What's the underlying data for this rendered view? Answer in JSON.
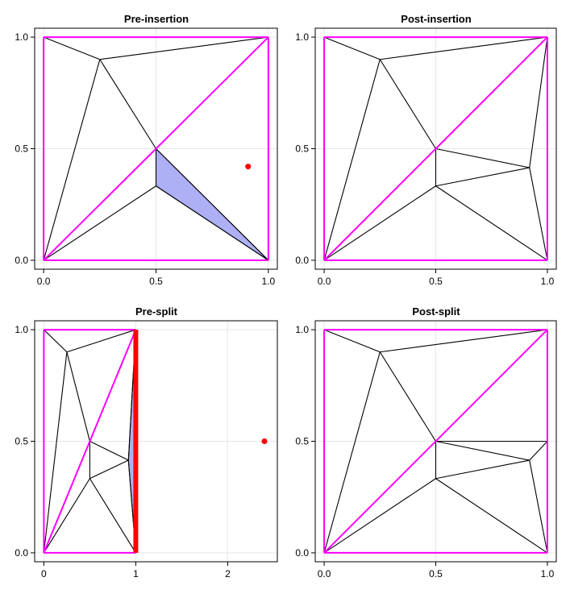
{
  "chart_data": [
    {
      "type": "triangulation",
      "title": "Pre-insertion",
      "xlim": [
        -0.04,
        1.04
      ],
      "ylim": [
        -0.04,
        1.04
      ],
      "xticks": [
        0,
        0.5,
        1
      ],
      "xtick_labels": [
        "0.0",
        "0.5",
        "1.0"
      ],
      "yticks": [
        0,
        0.5,
        1
      ],
      "ytick_labels": [
        "0.0",
        "0.5",
        "1.0"
      ],
      "grid": true,
      "edges": [
        [
          [
            0,
            0
          ],
          [
            1,
            0
          ]
        ],
        [
          [
            1,
            0
          ],
          [
            1,
            1
          ]
        ],
        [
          [
            1,
            1
          ],
          [
            0,
            1
          ]
        ],
        [
          [
            0,
            1
          ],
          [
            0,
            0
          ]
        ],
        [
          [
            0,
            0
          ],
          [
            1,
            1
          ]
        ],
        [
          [
            0,
            1
          ],
          [
            0.25,
            0.9
          ]
        ],
        [
          [
            0.25,
            0.9
          ],
          [
            1,
            1
          ]
        ],
        [
          [
            0,
            0
          ],
          [
            0.25,
            0.9
          ]
        ],
        [
          [
            0.25,
            0.9
          ],
          [
            0.5,
            0.5
          ]
        ],
        [
          [
            0.5,
            0.5
          ],
          [
            0.5,
            0.333
          ]
        ],
        [
          [
            0.5,
            0.333
          ],
          [
            0,
            0
          ]
        ],
        [
          [
            0.5,
            0.333
          ],
          [
            1,
            0
          ]
        ],
        [
          [
            0.5,
            0.5
          ],
          [
            1,
            0
          ]
        ]
      ],
      "constrained_edges": [
        [
          [
            0,
            0
          ],
          [
            1,
            0
          ]
        ],
        [
          [
            1,
            0
          ],
          [
            1,
            1
          ]
        ],
        [
          [
            1,
            1
          ],
          [
            0,
            1
          ]
        ],
        [
          [
            0,
            1
          ],
          [
            0,
            0
          ]
        ],
        [
          [
            0,
            0
          ],
          [
            1,
            1
          ]
        ]
      ],
      "highlighted_triangles": [
        [
          [
            0.5,
            0.5
          ],
          [
            0.5,
            0.333
          ],
          [
            1,
            0
          ]
        ]
      ],
      "points": [
        [
          0.91,
          0.42
        ]
      ],
      "thick_edges": [],
      "colors": {
        "edge": "#000000",
        "constrained": "#ff00ff",
        "fill": "#aeb0f5",
        "point": "#ff0000"
      }
    },
    {
      "type": "triangulation",
      "title": "Post-insertion",
      "xlim": [
        -0.04,
        1.04
      ],
      "ylim": [
        -0.04,
        1.04
      ],
      "xticks": [
        0,
        0.5,
        1
      ],
      "xtick_labels": [
        "0.0",
        "0.5",
        "1.0"
      ],
      "yticks": [
        0,
        0.5,
        1
      ],
      "ytick_labels": [
        "0.0",
        "0.5",
        "1.0"
      ],
      "grid": true,
      "edges": [
        [
          [
            0,
            0
          ],
          [
            1,
            0
          ]
        ],
        [
          [
            1,
            0
          ],
          [
            1,
            1
          ]
        ],
        [
          [
            1,
            1
          ],
          [
            0,
            1
          ]
        ],
        [
          [
            0,
            1
          ],
          [
            0,
            0
          ]
        ],
        [
          [
            0,
            0
          ],
          [
            1,
            1
          ]
        ],
        [
          [
            0,
            1
          ],
          [
            0.25,
            0.9
          ]
        ],
        [
          [
            0.25,
            0.9
          ],
          [
            1,
            1
          ]
        ],
        [
          [
            0,
            0
          ],
          [
            0.25,
            0.9
          ]
        ],
        [
          [
            0.25,
            0.9
          ],
          [
            0.5,
            0.5
          ]
        ],
        [
          [
            0.5,
            0.5
          ],
          [
            0.5,
            0.333
          ]
        ],
        [
          [
            0.5,
            0.333
          ],
          [
            0,
            0
          ]
        ],
        [
          [
            0.5,
            0.333
          ],
          [
            1,
            0
          ]
        ],
        [
          [
            0.5,
            0.5
          ],
          [
            0.92,
            0.415
          ]
        ],
        [
          [
            0.5,
            0.333
          ],
          [
            0.92,
            0.415
          ]
        ],
        [
          [
            0.92,
            0.415
          ],
          [
            1,
            0
          ]
        ],
        [
          [
            0.92,
            0.415
          ],
          [
            1,
            1
          ]
        ]
      ],
      "constrained_edges": [
        [
          [
            0,
            0
          ],
          [
            1,
            0
          ]
        ],
        [
          [
            1,
            0
          ],
          [
            1,
            1
          ]
        ],
        [
          [
            1,
            1
          ],
          [
            0,
            1
          ]
        ],
        [
          [
            0,
            1
          ],
          [
            0,
            0
          ]
        ],
        [
          [
            0,
            0
          ],
          [
            1,
            1
          ]
        ]
      ],
      "highlighted_triangles": [],
      "points": [],
      "thick_edges": [],
      "colors": {
        "edge": "#000000",
        "constrained": "#ff00ff",
        "fill": "#aeb0f5",
        "point": "#ff0000"
      }
    },
    {
      "type": "triangulation",
      "title": "Pre-split",
      "xlim": [
        -0.1,
        2.54
      ],
      "ylim": [
        -0.04,
        1.04
      ],
      "xticks": [
        0,
        1,
        2
      ],
      "xtick_labels": [
        "0",
        "1",
        "2"
      ],
      "yticks": [
        0,
        0.5,
        1
      ],
      "ytick_labels": [
        "0.0",
        "0.5",
        "1.0"
      ],
      "grid": true,
      "edges": [
        [
          [
            0,
            0
          ],
          [
            1,
            0
          ]
        ],
        [
          [
            1,
            0
          ],
          [
            1,
            1
          ]
        ],
        [
          [
            1,
            1
          ],
          [
            0,
            1
          ]
        ],
        [
          [
            0,
            1
          ],
          [
            0,
            0
          ]
        ],
        [
          [
            0,
            0
          ],
          [
            1,
            1
          ]
        ],
        [
          [
            0,
            1
          ],
          [
            0.25,
            0.9
          ]
        ],
        [
          [
            0.25,
            0.9
          ],
          [
            1,
            1
          ]
        ],
        [
          [
            0,
            0
          ],
          [
            0.25,
            0.9
          ]
        ],
        [
          [
            0.25,
            0.9
          ],
          [
            0.5,
            0.5
          ]
        ],
        [
          [
            0.5,
            0.5
          ],
          [
            0.5,
            0.333
          ]
        ],
        [
          [
            0.5,
            0.333
          ],
          [
            0,
            0
          ]
        ],
        [
          [
            0.5,
            0.333
          ],
          [
            1,
            0
          ]
        ],
        [
          [
            0.5,
            0.5
          ],
          [
            0.92,
            0.415
          ]
        ],
        [
          [
            0.5,
            0.333
          ],
          [
            0.92,
            0.415
          ]
        ],
        [
          [
            0.92,
            0.415
          ],
          [
            1,
            0
          ]
        ],
        [
          [
            0.92,
            0.415
          ],
          [
            1,
            1
          ]
        ]
      ],
      "constrained_edges": [
        [
          [
            0,
            0
          ],
          [
            1,
            0
          ]
        ],
        [
          [
            1,
            1
          ],
          [
            0,
            1
          ]
        ],
        [
          [
            0,
            1
          ],
          [
            0,
            0
          ]
        ],
        [
          [
            0,
            0
          ],
          [
            1,
            1
          ]
        ]
      ],
      "highlighted_triangles": [
        [
          [
            0.92,
            0.415
          ],
          [
            1,
            0
          ],
          [
            1,
            1
          ]
        ]
      ],
      "points": [
        [
          2.4,
          0.5
        ]
      ],
      "thick_edges": [
        [
          [
            1,
            0
          ],
          [
            1,
            1
          ]
        ]
      ],
      "colors": {
        "edge": "#000000",
        "constrained": "#ff00ff",
        "fill": "#aeb0f5",
        "point": "#ff0000"
      }
    },
    {
      "type": "triangulation",
      "title": "Post-split",
      "xlim": [
        -0.04,
        1.04
      ],
      "ylim": [
        -0.04,
        1.04
      ],
      "xticks": [
        0,
        0.5,
        1
      ],
      "xtick_labels": [
        "0.0",
        "0.5",
        "1.0"
      ],
      "yticks": [
        0,
        0.5,
        1
      ],
      "ytick_labels": [
        "0.0",
        "0.5",
        "1.0"
      ],
      "grid": true,
      "edges": [
        [
          [
            0,
            0
          ],
          [
            1,
            0
          ]
        ],
        [
          [
            1,
            0
          ],
          [
            1,
            1
          ]
        ],
        [
          [
            1,
            1
          ],
          [
            0,
            1
          ]
        ],
        [
          [
            0,
            1
          ],
          [
            0,
            0
          ]
        ],
        [
          [
            0,
            0
          ],
          [
            1,
            1
          ]
        ],
        [
          [
            0,
            1
          ],
          [
            0.25,
            0.9
          ]
        ],
        [
          [
            0.25,
            0.9
          ],
          [
            1,
            1
          ]
        ],
        [
          [
            0,
            0
          ],
          [
            0.25,
            0.9
          ]
        ],
        [
          [
            0.25,
            0.9
          ],
          [
            0.5,
            0.5
          ]
        ],
        [
          [
            0.5,
            0.5
          ],
          [
            0.5,
            0.333
          ]
        ],
        [
          [
            0.5,
            0.333
          ],
          [
            0,
            0
          ]
        ],
        [
          [
            0.5,
            0.333
          ],
          [
            1,
            0
          ]
        ],
        [
          [
            0.5,
            0.5
          ],
          [
            0.92,
            0.415
          ]
        ],
        [
          [
            0.5,
            0.333
          ],
          [
            0.92,
            0.415
          ]
        ],
        [
          [
            0.92,
            0.415
          ],
          [
            1,
            0
          ]
        ],
        [
          [
            0.5,
            0.5
          ],
          [
            1,
            0.5
          ]
        ],
        [
          [
            0.92,
            0.415
          ],
          [
            1,
            0.5
          ]
        ]
      ],
      "constrained_edges": [
        [
          [
            0,
            0
          ],
          [
            1,
            0
          ]
        ],
        [
          [
            1,
            0
          ],
          [
            1,
            1
          ]
        ],
        [
          [
            1,
            1
          ],
          [
            0,
            1
          ]
        ],
        [
          [
            0,
            1
          ],
          [
            0,
            0
          ]
        ],
        [
          [
            0,
            0
          ],
          [
            1,
            1
          ]
        ]
      ],
      "highlighted_triangles": [],
      "points": [],
      "thick_edges": [],
      "colors": {
        "edge": "#000000",
        "constrained": "#ff00ff",
        "fill": "#aeb0f5",
        "point": "#ff0000"
      }
    }
  ]
}
